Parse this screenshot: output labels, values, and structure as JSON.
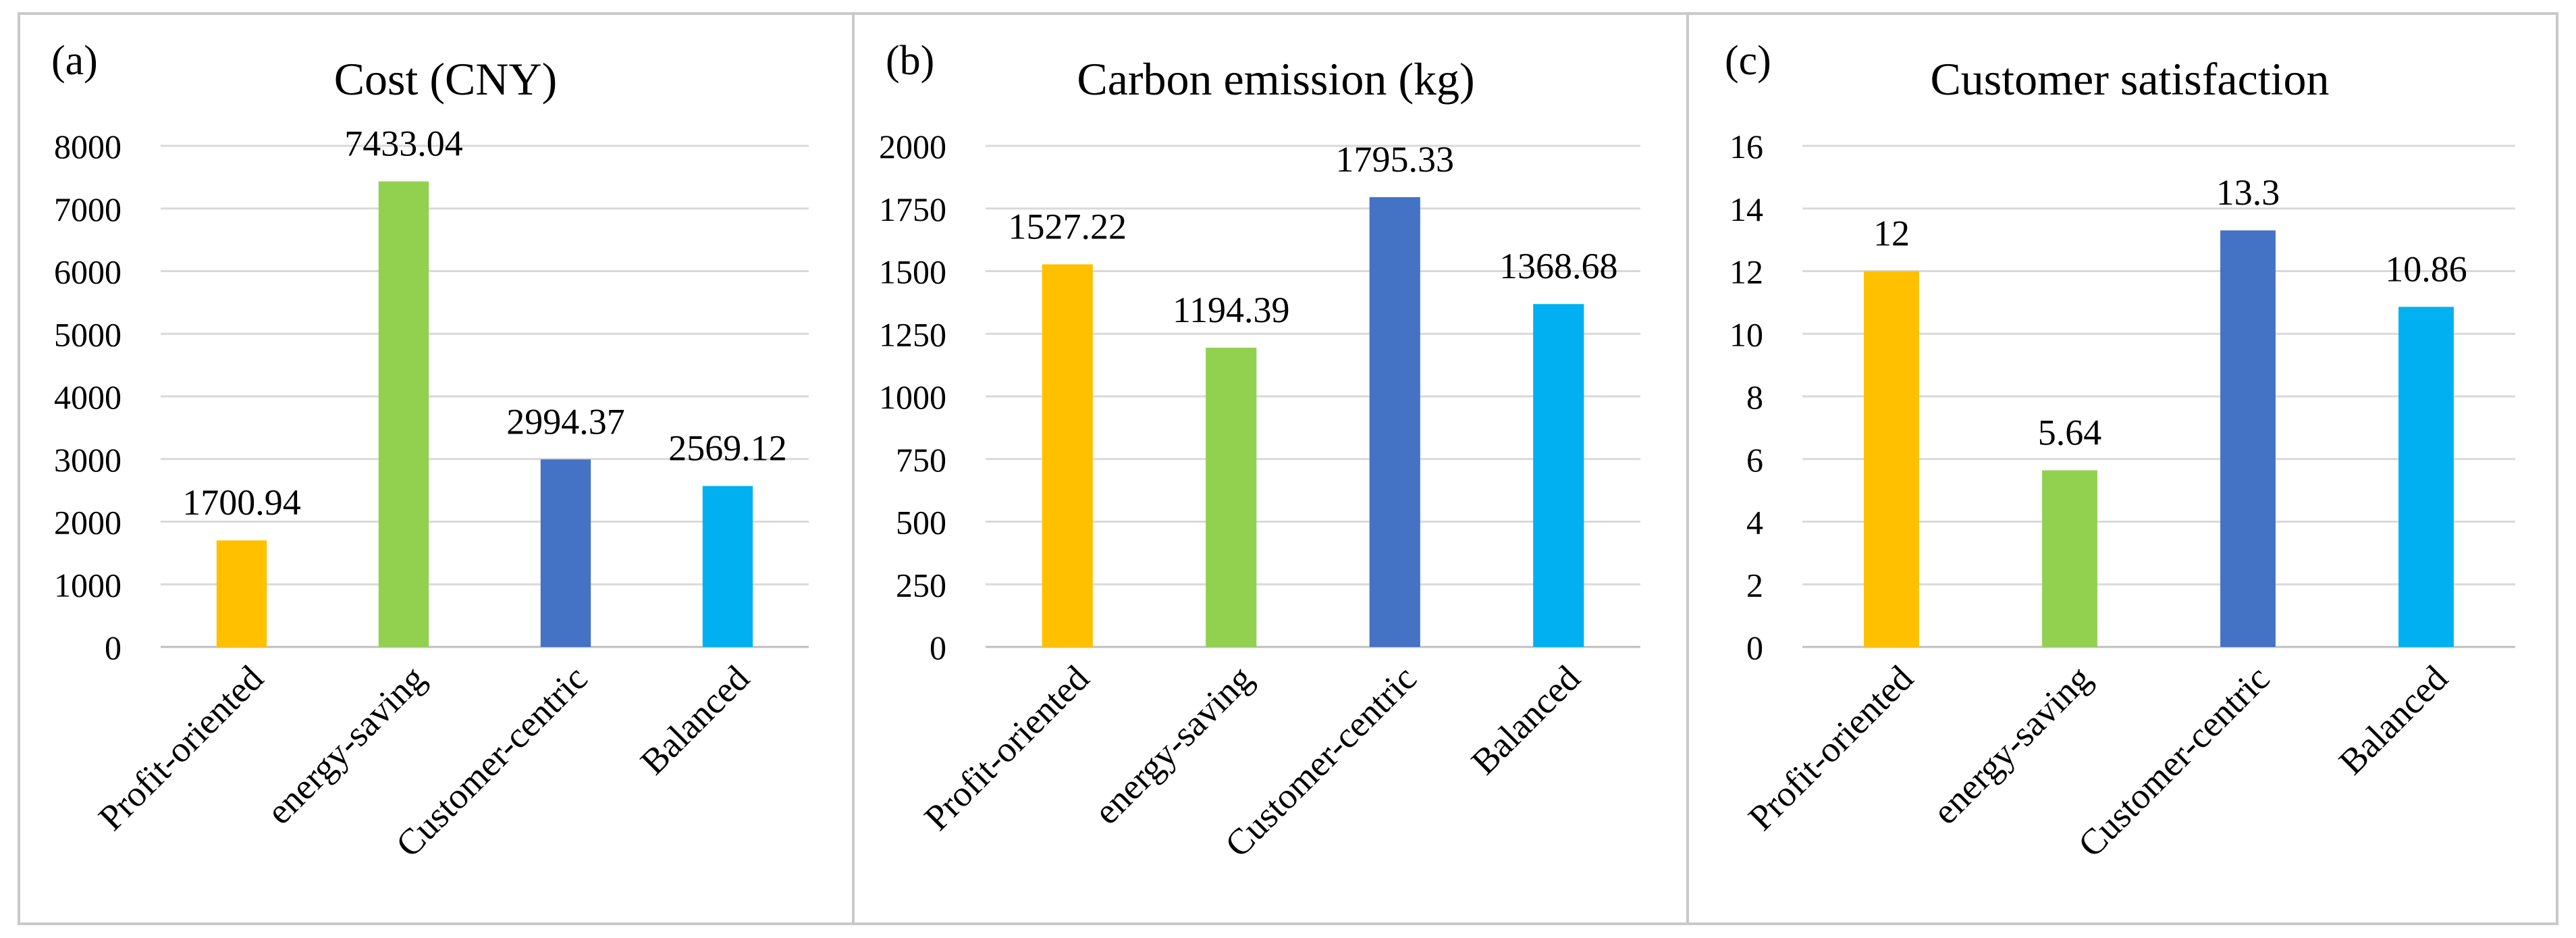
{
  "figure": {
    "panels": [
      {
        "tag": "(a)"
      },
      {
        "tag": "(b)"
      },
      {
        "tag": "(c)"
      }
    ]
  },
  "chart_data": [
    {
      "type": "bar",
      "title": "Cost (CNY)",
      "xlabel": "",
      "ylabel": "",
      "categories": [
        "Profit-oriented",
        "energy-saving",
        "Customer-centric",
        "Balanced"
      ],
      "values": [
        1700.94,
        7433.04,
        2994.37,
        2569.12
      ],
      "labels": [
        "1700.94",
        "7433.04",
        "2994.37",
        "2569.12"
      ],
      "colors": [
        "#FFC000",
        "#92D050",
        "#4472C4",
        "#00B0F0"
      ],
      "ylim": [
        0,
        8000
      ],
      "yticks": [
        0,
        1000,
        2000,
        3000,
        4000,
        5000,
        6000,
        7000,
        8000
      ],
      "grid": true
    },
    {
      "type": "bar",
      "title": "Carbon emission (kg)",
      "xlabel": "",
      "ylabel": "",
      "categories": [
        "Profit-oriented",
        "energy-saving",
        "Customer-centric",
        "Balanced"
      ],
      "values": [
        1527.22,
        1194.39,
        1795.33,
        1368.68
      ],
      "labels": [
        "1527.22",
        "1194.39",
        "1795.33",
        "1368.68"
      ],
      "colors": [
        "#FFC000",
        "#92D050",
        "#4472C4",
        "#00B0F0"
      ],
      "ylim": [
        0,
        2000
      ],
      "yticks": [
        0,
        250,
        500,
        750,
        1000,
        1250,
        1500,
        1750,
        2000
      ],
      "grid": true
    },
    {
      "type": "bar",
      "title": "Customer satisfaction",
      "xlabel": "",
      "ylabel": "",
      "categories": [
        "Profit-oriented",
        "energy-saving",
        "Customer-centric",
        "Balanced"
      ],
      "values": [
        12,
        5.64,
        13.3,
        10.86
      ],
      "labels": [
        "12",
        "5.64",
        "13.3",
        "10.86"
      ],
      "colors": [
        "#FFC000",
        "#92D050",
        "#4472C4",
        "#00B0F0"
      ],
      "ylim": [
        0,
        16
      ],
      "yticks": [
        0,
        2,
        4,
        6,
        8,
        10,
        12,
        14,
        16
      ],
      "grid": true
    }
  ]
}
